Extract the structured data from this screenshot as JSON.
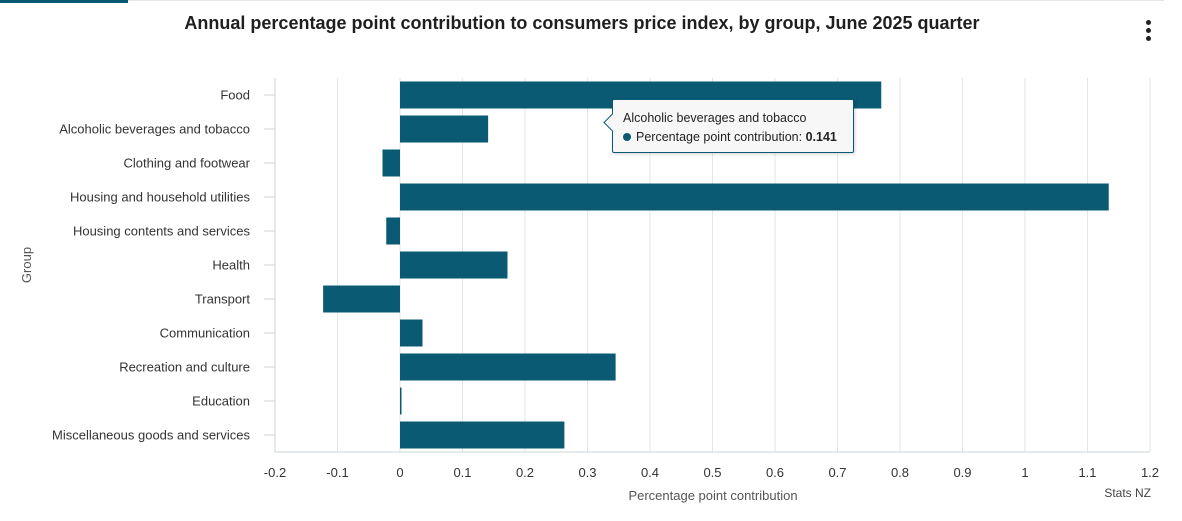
{
  "chart_data": {
    "type": "bar",
    "orientation": "horizontal",
    "title": "Annual percentage point contribution to consumers price index, by group, June 2025 quarter",
    "xlabel": "Percentage point contribution",
    "ylabel": "Group",
    "xlim": [
      -0.2,
      1.2
    ],
    "x_ticks": [
      "-0.2",
      "-0.1",
      "0",
      "0.1",
      "0.2",
      "0.3",
      "0.4",
      "0.5",
      "0.6",
      "0.7",
      "0.8",
      "0.9",
      "1",
      "1.1",
      "1.2"
    ],
    "grid": "vertical",
    "color": "#0a5a73",
    "categories": [
      "Food",
      "Alcoholic beverages and tobacco",
      "Clothing and footwear",
      "Housing and household utilities",
      "Housing contents and services",
      "Health",
      "Transport",
      "Communication",
      "Recreation and culture",
      "Education",
      "Miscellaneous goods and services"
    ],
    "values": [
      0.77,
      0.141,
      -0.028,
      1.134,
      -0.022,
      0.172,
      -0.123,
      0.036,
      0.345,
      0.002,
      0.263
    ],
    "credit": "Stats NZ"
  },
  "tooltip": {
    "category": "Alcoholic beverages and tobacco",
    "label": "Percentage point contribution:",
    "value": "0.141"
  },
  "menu": {
    "icon": "vertical-dots-icon"
  }
}
